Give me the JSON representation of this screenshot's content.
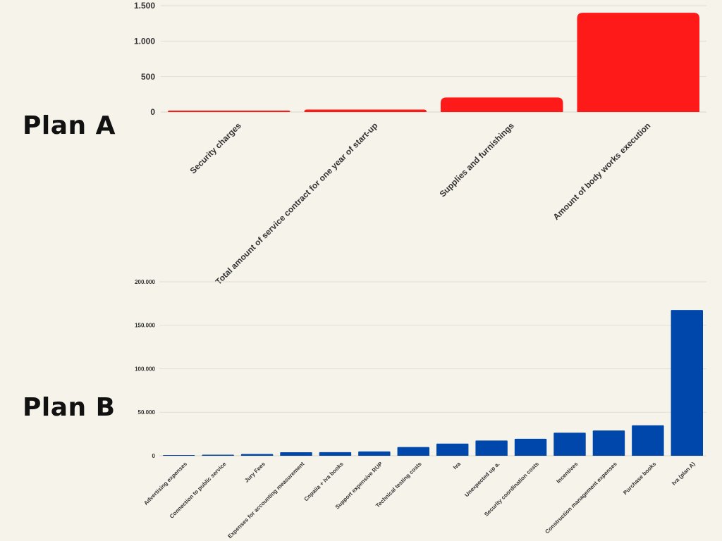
{
  "plans": {
    "a_label": "Plan A",
    "b_label": "Plan B"
  },
  "chart_data": [
    {
      "type": "bar",
      "color": "#ff1a1a",
      "categories": [
        "Security charges",
        "Total amount of service contract for one year of start-up",
        "Supplies and furnishings",
        "Amount of body works execution"
      ],
      "values": [
        20,
        35,
        205,
        1400
      ],
      "ylim": [
        0,
        1500
      ],
      "yticks": [
        0,
        500,
        1000,
        1500
      ],
      "ytick_labels": [
        "0",
        "500",
        "1.000",
        "1.500"
      ],
      "grid": true
    },
    {
      "type": "bar",
      "color": "#0047ab",
      "categories": [
        "Advertising expenses",
        "Connection to public service",
        "Jury Fees",
        "Expenses for accounting measurement",
        "Cnpaiia + iva books",
        "Support expensive RUP",
        "Technical testing costs",
        "Iva",
        "Unexpected up a.",
        "Security coordination costs",
        "Incentives",
        "Construction management expenses",
        "Purchase books",
        "Iva (plan A)"
      ],
      "values": [
        600,
        1200,
        2000,
        4000,
        4200,
        5000,
        10000,
        14000,
        17500,
        19500,
        26500,
        29000,
        35000,
        167500
      ],
      "ylim": [
        0,
        200000
      ],
      "yticks": [
        0,
        50000,
        100000,
        150000,
        200000
      ],
      "ytick_labels": [
        "0",
        "50.000",
        "100.000",
        "150.000",
        "200.000"
      ],
      "grid": true
    }
  ]
}
